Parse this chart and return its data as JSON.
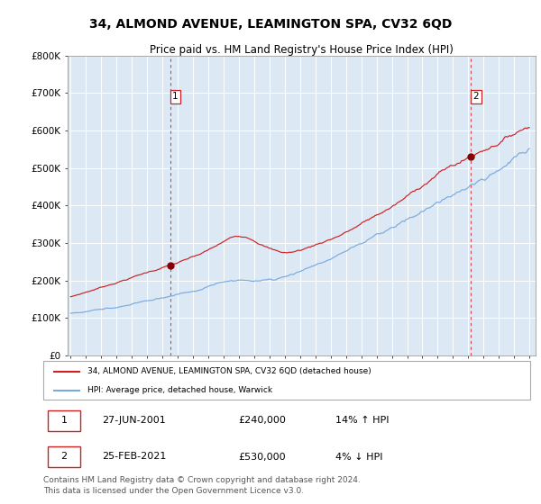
{
  "title": "34, ALMOND AVENUE, LEAMINGTON SPA, CV32 6QD",
  "subtitle": "Price paid vs. HM Land Registry's House Price Index (HPI)",
  "title_fontsize": 10,
  "subtitle_fontsize": 8.5,
  "background_color": "#dce9f5",
  "red_line_color": "#cc2222",
  "blue_line_color": "#7aaadd",
  "marker_color": "#880000",
  "dashed_line_color": "#dd4444",
  "grid_color": "#ffffff",
  "ylim": [
    0,
    800000
  ],
  "yticks": [
    0,
    100000,
    200000,
    300000,
    400000,
    500000,
    600000,
    700000,
    800000
  ],
  "xstart_year": 1995,
  "xend_year": 2025,
  "transaction1_year": 2001.5,
  "transaction1_value": 240000,
  "transaction1_label": "1",
  "transaction2_year": 2021.15,
  "transaction2_value": 530000,
  "transaction2_label": "2",
  "legend_red_label": "34, ALMOND AVENUE, LEAMINGTON SPA, CV32 6QD (detached house)",
  "legend_blue_label": "HPI: Average price, detached house, Warwick",
  "table_row1": [
    "1",
    "27-JUN-2001",
    "£240,000",
    "14% ↑ HPI"
  ],
  "table_row2": [
    "2",
    "25-FEB-2021",
    "£530,000",
    "4% ↓ HPI"
  ],
  "footer": "Contains HM Land Registry data © Crown copyright and database right 2024.\nThis data is licensed under the Open Government Licence v3.0.",
  "footer_fontsize": 6.5
}
